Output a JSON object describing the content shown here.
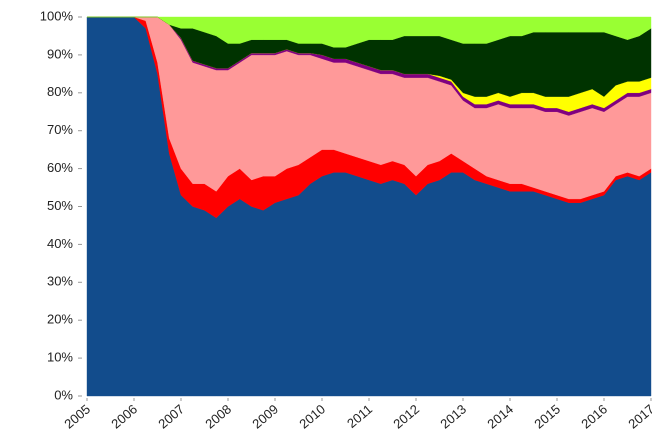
{
  "chart_data": {
    "type": "stacked_area",
    "x": [
      2005,
      2005.25,
      2005.5,
      2005.75,
      2006,
      2006.25,
      2006.5,
      2006.75,
      2007,
      2007.25,
      2007.5,
      2007.75,
      2008,
      2008.25,
      2008.5,
      2008.75,
      2009,
      2009.25,
      2009.5,
      2009.75,
      2010,
      2010.25,
      2010.5,
      2010.75,
      2011,
      2011.25,
      2011.5,
      2011.75,
      2012,
      2012.25,
      2012.5,
      2012.75,
      2013,
      2013.25,
      2013.5,
      2013.75,
      2014,
      2014.25,
      2014.5,
      2014.75,
      2015,
      2015.25,
      2015.5,
      2015.75,
      2016,
      2016.25,
      2016.5,
      2016.75,
      2017
    ],
    "series": [
      {
        "color": "#124c8c",
        "values": [
          100,
          100,
          100,
          100,
          100,
          97,
          85,
          64,
          53,
          50,
          49,
          47,
          50,
          52,
          50,
          49,
          51,
          52,
          53,
          56,
          58,
          59,
          59,
          58,
          57,
          56,
          57,
          56,
          53,
          56,
          57,
          59,
          59,
          57,
          56,
          55,
          54,
          54,
          54,
          53,
          52,
          51,
          51,
          52,
          53,
          57,
          58,
          57,
          59
        ]
      },
      {
        "color": "#ff0000",
        "values": [
          0,
          0,
          0,
          0,
          0,
          2,
          3,
          4,
          7,
          6,
          7,
          7,
          8,
          8,
          7,
          9,
          7,
          8,
          8,
          7,
          7,
          6,
          5,
          5,
          5,
          5,
          5,
          5,
          5,
          5,
          5,
          5,
          3,
          3,
          2,
          2,
          2,
          2,
          1,
          1,
          1,
          1,
          1,
          1,
          1,
          1,
          1,
          1,
          1
        ]
      },
      {
        "color": "#ff9999",
        "values": [
          0,
          0,
          0,
          0,
          0,
          1,
          12,
          30,
          34,
          32,
          31,
          32,
          28,
          28,
          33,
          32,
          32,
          31,
          29,
          27,
          24,
          23,
          24,
          24,
          24,
          24,
          23,
          23,
          26,
          23,
          21,
          18,
          16,
          16,
          18,
          20,
          20,
          20,
          21,
          21,
          22,
          22,
          23,
          23,
          21,
          19,
          20,
          21,
          20
        ]
      },
      {
        "color": "#800080",
        "values": [
          0,
          0,
          0,
          0,
          0,
          0,
          0,
          0,
          0.5,
          0.5,
          0.5,
          0.5,
          0.5,
          0.5,
          0.5,
          0.5,
          0.5,
          0.5,
          0.5,
          0.5,
          1,
          1,
          1,
          1,
          1,
          1,
          1,
          1,
          1,
          1,
          1,
          1,
          1,
          1,
          1,
          1,
          1,
          1,
          1,
          1,
          1,
          1,
          1,
          1,
          1,
          1,
          1,
          1,
          1
        ]
      },
      {
        "color": "#ffff00",
        "values": [
          0,
          0,
          0,
          0,
          0,
          0,
          0,
          0,
          0,
          0,
          0,
          0,
          0,
          0,
          0,
          0,
          0,
          0,
          0,
          0,
          0,
          0,
          0,
          0,
          0,
          0,
          0,
          0,
          0,
          0,
          0.5,
          0.5,
          1,
          2,
          2,
          2,
          2,
          3,
          3,
          3,
          3,
          4,
          4,
          4,
          3,
          4,
          3,
          3,
          3
        ]
      },
      {
        "color": "#003300",
        "values": [
          0,
          0,
          0,
          0,
          0,
          0,
          0,
          0,
          2.5,
          8.5,
          8.5,
          8.5,
          6.5,
          4.5,
          3.5,
          3.5,
          3.5,
          2.5,
          2.5,
          2.5,
          3,
          3,
          3,
          5,
          7,
          8,
          8,
          10,
          10,
          10,
          10.5,
          10.5,
          13,
          14,
          14,
          14,
          16,
          15,
          16,
          17,
          17,
          17,
          16,
          15,
          17,
          13,
          11,
          12,
          13
        ]
      },
      {
        "color": "#99ff33",
        "values": [
          0,
          0,
          0,
          0,
          0,
          0,
          0,
          2,
          3,
          3,
          4,
          5,
          7,
          7,
          6,
          6,
          6,
          6,
          7,
          7,
          7,
          8,
          8,
          7,
          6,
          6,
          6,
          5,
          5,
          5,
          5,
          6,
          7,
          7,
          7,
          6,
          5,
          5,
          4,
          4,
          4,
          4,
          4,
          4,
          4,
          5,
          6,
          5,
          3
        ]
      }
    ],
    "xlim": [
      2005,
      2017
    ],
    "xticks": [
      2005,
      2006,
      2007,
      2008,
      2009,
      2010,
      2011,
      2012,
      2013,
      2014,
      2015,
      2016,
      2017
    ],
    "ylim": [
      0,
      100
    ],
    "yticks": [
      {
        "value": 0,
        "label": "0%"
      },
      {
        "value": 10,
        "label": "10%"
      },
      {
        "value": 20,
        "label": "20%"
      },
      {
        "value": 30,
        "label": "30%"
      },
      {
        "value": 40,
        "label": "40%"
      },
      {
        "value": 50,
        "label": "50%"
      },
      {
        "value": 60,
        "label": "60%"
      },
      {
        "value": 70,
        "label": "70%"
      },
      {
        "value": 80,
        "label": "80%"
      },
      {
        "value": 90,
        "label": "90%"
      },
      {
        "value": 100,
        "label": "100%"
      }
    ]
  }
}
